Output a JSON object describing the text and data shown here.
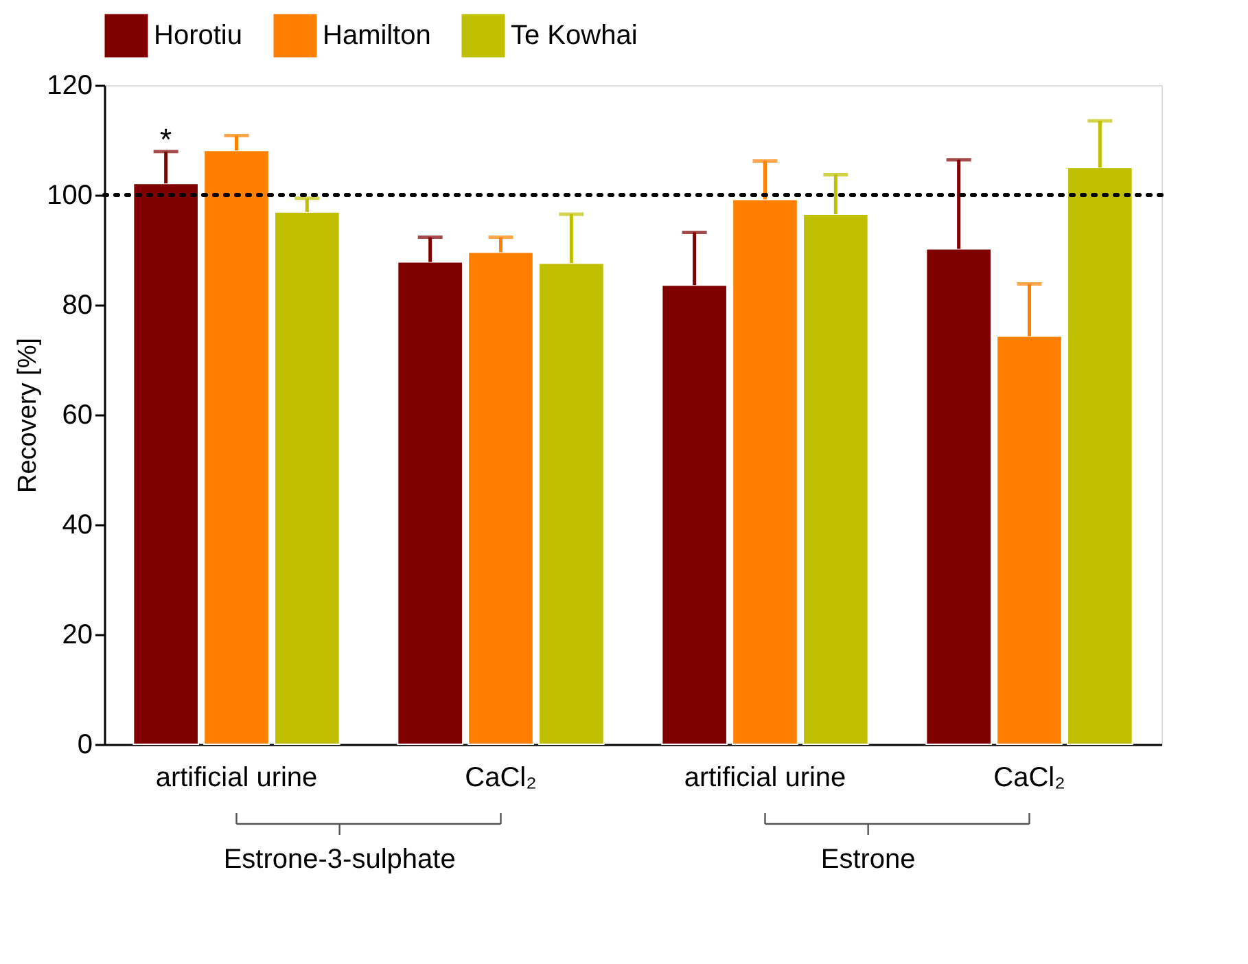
{
  "chart_data": {
    "type": "bar",
    "ylabel": "Recovery [%]",
    "categories": [
      "artificial urine",
      "CaCl₂",
      "artificial urine",
      "CaCl₂"
    ],
    "series": [
      {
        "name": "Horotiu",
        "color": "#800000",
        "values": [
          102.1,
          87.8,
          83.6,
          90.2
        ],
        "errors": [
          [
            102.1,
            107.9
          ],
          [
            87.8,
            92.3
          ],
          [
            83.6,
            93.2
          ],
          [
            90.2,
            106.4
          ]
        ]
      },
      {
        "name": "Hamilton",
        "color": "#ff8000",
        "values": [
          108.1,
          89.6,
          99.2,
          74.3
        ],
        "errors": [
          [
            108.1,
            110.8
          ],
          [
            89.6,
            92.3
          ],
          [
            99.2,
            106.2
          ],
          [
            74.3,
            83.8
          ]
        ]
      },
      {
        "name": "Te Kowhai",
        "color": "#c0c000",
        "values": [
          96.9,
          87.6,
          96.5,
          105.0
        ],
        "errors": [
          [
            96.9,
            99.4
          ],
          [
            87.6,
            96.5
          ],
          [
            96.5,
            103.7
          ],
          [
            105.0,
            113.5
          ]
        ]
      }
    ],
    "ylim": [
      0,
      120
    ],
    "yticks": [
      0,
      20,
      40,
      60,
      80,
      100,
      120
    ],
    "ref_lines": [
      {
        "axis": "y",
        "value": 100,
        "line_style": "dotted",
        "color": "#000000"
      }
    ],
    "annotations": [
      {
        "text": "*",
        "x": "artificial urine",
        "y": 110
      },
      "Estrone-3-sulphate",
      "Estrone"
    ],
    "legend": "top",
    "grid": false
  }
}
